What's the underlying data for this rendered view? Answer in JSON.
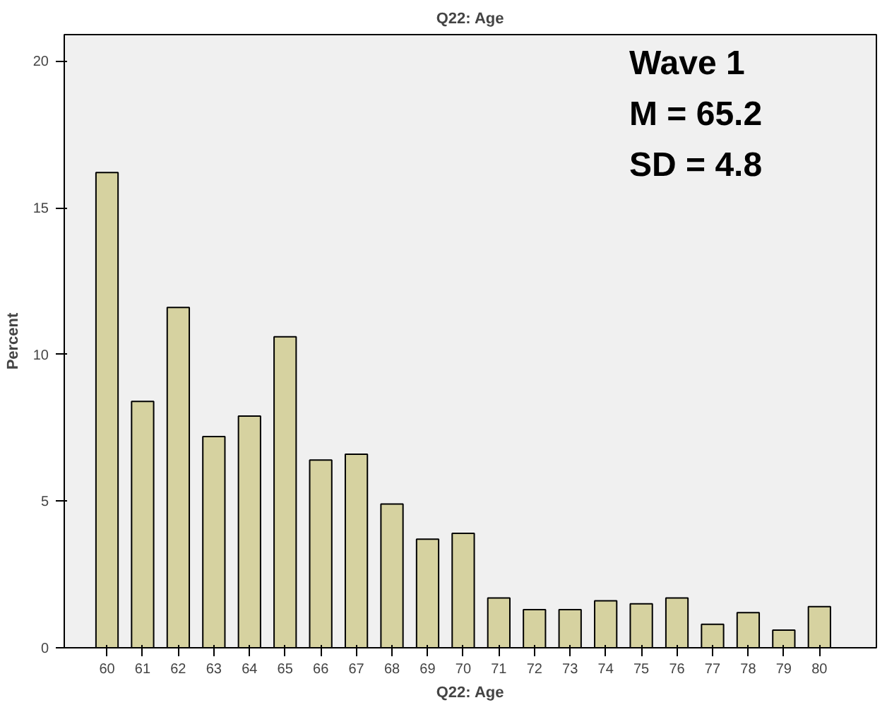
{
  "chart_data": {
    "type": "bar",
    "title": "Q22: Age",
    "xlabel": "Q22: Age",
    "ylabel": "Percent",
    "categories": [
      "60",
      "61",
      "62",
      "63",
      "64",
      "65",
      "66",
      "67",
      "68",
      "69",
      "70",
      "71",
      "72",
      "73",
      "74",
      "75",
      "76",
      "77",
      "78",
      "79",
      "80"
    ],
    "values": [
      16.2,
      8.4,
      11.6,
      7.2,
      7.9,
      10.6,
      6.4,
      6.6,
      4.9,
      3.7,
      3.9,
      1.7,
      1.3,
      1.3,
      1.6,
      1.5,
      1.7,
      0.8,
      1.2,
      0.6,
      1.4
    ],
    "color": "#d6d2a0",
    "ylim": [
      0,
      20.9
    ],
    "yticks": [
      0,
      5,
      10,
      15,
      20
    ],
    "grid": false,
    "annotations": [
      "Wave 1",
      "M = 65.2",
      "SD = 4.8"
    ]
  }
}
